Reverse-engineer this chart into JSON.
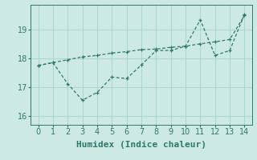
{
  "xlabel": "Humidex (Indice chaleur)",
  "ylim": [
    15.7,
    19.85
  ],
  "xlim": [
    -0.5,
    14.5
  ],
  "yticks": [
    16,
    17,
    18,
    19
  ],
  "xticks": [
    0,
    1,
    2,
    3,
    4,
    5,
    6,
    7,
    8,
    9,
    10,
    11,
    12,
    13,
    14
  ],
  "background_color": "#cce9e4",
  "grid_color": "#a8d5cc",
  "line_color": "#2a7a6a",
  "line1_x": [
    0,
    1,
    2,
    3,
    4,
    5,
    6,
    7,
    8,
    9,
    10,
    11,
    12,
    13,
    14
  ],
  "line1_y": [
    17.75,
    17.85,
    17.95,
    18.05,
    18.1,
    18.18,
    18.23,
    18.3,
    18.32,
    18.38,
    18.42,
    18.5,
    18.57,
    18.65,
    19.48
  ],
  "line2_x": [
    0,
    1,
    2,
    3,
    4,
    5,
    6,
    7,
    8,
    9,
    10,
    11,
    12,
    13,
    14
  ],
  "line2_y": [
    17.75,
    17.85,
    17.12,
    16.55,
    16.82,
    17.35,
    17.3,
    17.77,
    18.27,
    18.27,
    18.42,
    19.33,
    18.1,
    18.27,
    19.52
  ],
  "font_size_label": 8,
  "font_size_tick": 7,
  "linewidth": 0.9,
  "markersize": 3.5
}
